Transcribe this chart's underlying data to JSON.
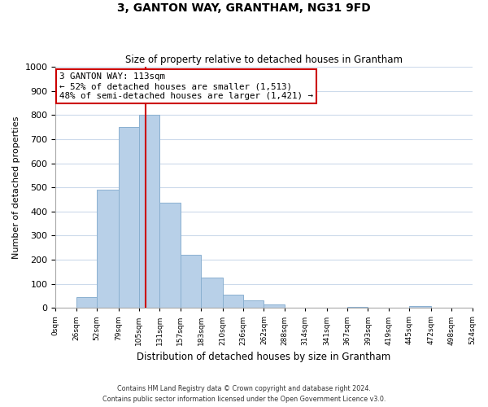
{
  "title": "3, GANTON WAY, GRANTHAM, NG31 9FD",
  "subtitle": "Size of property relative to detached houses in Grantham",
  "xlabel": "Distribution of detached houses by size in Grantham",
  "ylabel": "Number of detached properties",
  "bar_color": "#b8d0e8",
  "bar_edge_color": "#8ab0d0",
  "highlight_color": "#cc0000",
  "background_color": "#ffffff",
  "grid_color": "#ccdaeb",
  "bin_edges": [
    0,
    26,
    52,
    79,
    105,
    131,
    157,
    183,
    210,
    236,
    262,
    288,
    314,
    341,
    367,
    393,
    419,
    445,
    472,
    498,
    524
  ],
  "bin_labels": [
    "0sqm",
    "26sqm",
    "52sqm",
    "79sqm",
    "105sqm",
    "131sqm",
    "157sqm",
    "183sqm",
    "210sqm",
    "236sqm",
    "262sqm",
    "288sqm",
    "314sqm",
    "341sqm",
    "367sqm",
    "393sqm",
    "419sqm",
    "445sqm",
    "472sqm",
    "498sqm",
    "524sqm"
  ],
  "bar_heights": [
    0,
    45,
    490,
    750,
    800,
    435,
    220,
    125,
    55,
    30,
    15,
    0,
    0,
    0,
    5,
    0,
    0,
    8,
    0,
    0
  ],
  "property_line_x": 113,
  "ylim": [
    0,
    1000
  ],
  "yticks": [
    0,
    100,
    200,
    300,
    400,
    500,
    600,
    700,
    800,
    900,
    1000
  ],
  "annotation_line1": "3 GANTON WAY: 113sqm",
  "annotation_line2": "← 52% of detached houses are smaller (1,513)",
  "annotation_line3": "48% of semi-detached houses are larger (1,421) →",
  "footnote1": "Contains HM Land Registry data © Crown copyright and database right 2024.",
  "footnote2": "Contains public sector information licensed under the Open Government Licence v3.0."
}
